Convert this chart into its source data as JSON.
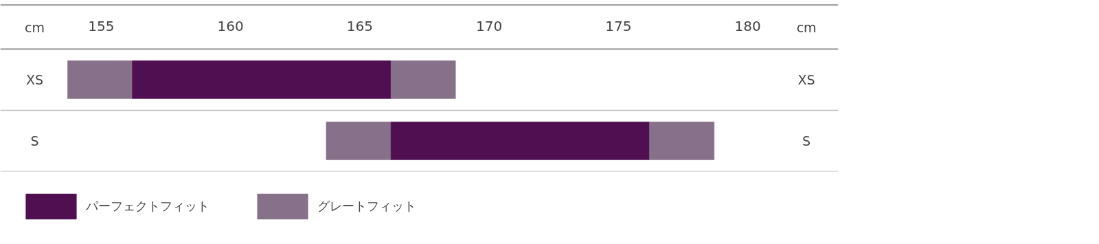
{
  "chart_data": {
    "type": "bar",
    "orientation": "horizontal",
    "stacked": false,
    "xlabel": "cm",
    "categories": [
      "XS",
      "S"
    ],
    "series": [
      {
        "name": "グレートフィット",
        "color": "#877089",
        "base": [
          153.7,
          163.7
        ],
        "values": [
          2.5,
          2.5
        ]
      },
      {
        "name": "パーフェクトフィット",
        "color": "#4f0f50",
        "base": [
          156.2,
          166.2
        ],
        "values": [
          10,
          10
        ]
      },
      {
        "color": "#877089",
        "base": [
          166.2,
          176.2
        ],
        "values": [
          2.5,
          2.5
        ]
      }
    ],
    "xlim": [
      151.1,
      183.5
    ],
    "xticks": [
      155,
      160,
      165,
      170,
      175,
      180
    ],
    "grid": false,
    "legend": "bottom"
  }
}
